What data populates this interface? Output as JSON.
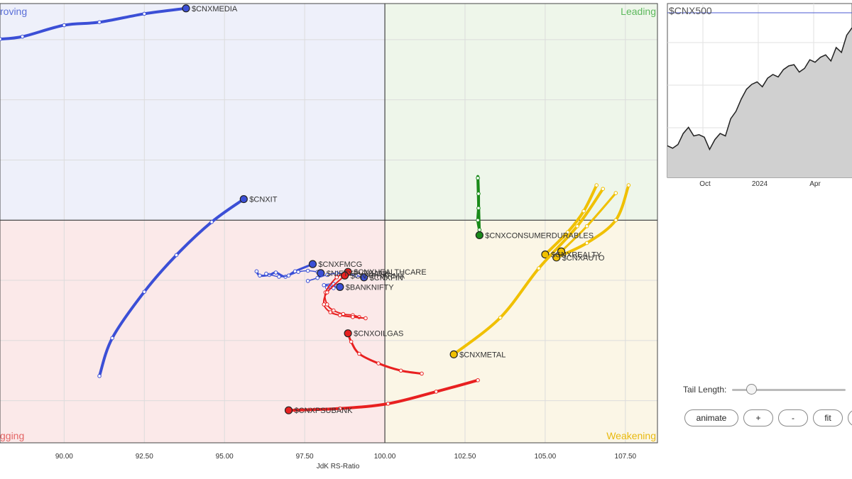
{
  "chart_data": {
    "type": "scatter",
    "subtype": "relative-rotation-graph",
    "xlabel": "JdK RS-Ratio",
    "ylabel": "",
    "xlim": [
      88.0,
      108.5
    ],
    "ylim": [
      96.3,
      103.6
    ],
    "center": [
      100,
      100
    ],
    "x_ticks": [
      90.0,
      92.5,
      95.0,
      97.5,
      100.0,
      102.5,
      105.0,
      107.5
    ],
    "x_tick_labels": [
      "90.00",
      "92.50",
      "95.00",
      "97.50",
      "100.00",
      "102.50",
      "105.00",
      "107.50"
    ],
    "grid": true,
    "quadrants": [
      {
        "name": "Improving",
        "label": "roving",
        "position": "top-left",
        "color": "#5a6fd8",
        "fill": "#eef0fa"
      },
      {
        "name": "Leading",
        "label": "Leading",
        "position": "top-right",
        "color": "#5cb85c",
        "fill": "#eef6ea"
      },
      {
        "name": "Lagging",
        "label": "gging",
        "position": "bottom-left",
        "color": "#e36464",
        "fill": "#fbe9e9"
      },
      {
        "name": "Weakening",
        "label": "Weakening",
        "position": "bottom-right",
        "color": "#e8b90f",
        "fill": "#fbf6e6"
      }
    ],
    "series": [
      {
        "name": "$CNXMEDIA",
        "color": "#3b4fd6",
        "lw": 4,
        "points": [
          [
            88.0,
            103.01
          ],
          [
            88.7,
            103.05
          ],
          [
            90.0,
            103.24
          ],
          [
            91.1,
            103.29
          ],
          [
            92.5,
            103.43
          ],
          [
            93.8,
            103.52
          ]
        ]
      },
      {
        "name": "$CNXIT",
        "color": "#3b4fd6",
        "lw": 4,
        "points": [
          [
            91.1,
            97.41
          ],
          [
            91.5,
            98.04
          ],
          [
            92.5,
            98.81
          ],
          [
            93.5,
            99.42
          ],
          [
            94.6,
            99.97
          ],
          [
            95.6,
            100.35
          ]
        ]
      },
      {
        "name": "$CNXFMCG",
        "color": "#3b4fd6",
        "lw": 3,
        "points": [
          [
            96.0,
            99.15
          ],
          [
            96.1,
            99.08
          ],
          [
            96.4,
            99.09
          ],
          [
            96.6,
            99.13
          ],
          [
            96.9,
            99.06
          ],
          [
            97.2,
            99.15
          ],
          [
            97.75,
            99.27
          ]
        ]
      },
      {
        "name": "$NIFTYPVTBANK",
        "color": "#3b4fd6",
        "lw": 1.5,
        "points": [
          [
            96.3,
            99.11
          ],
          [
            96.7,
            99.06
          ],
          [
            97.0,
            99.08
          ],
          [
            97.3,
            99.14
          ],
          [
            97.6,
            99.16
          ],
          [
            97.9,
            99.14
          ],
          [
            98.0,
            99.12
          ]
        ]
      },
      {
        "name": "$CNXFIN",
        "color": "#3b4fd6",
        "lw": 1.5,
        "points": [
          [
            97.6,
            98.99
          ],
          [
            97.9,
            99.04
          ],
          [
            98.2,
            99.09
          ],
          [
            98.5,
            99.12
          ],
          [
            98.8,
            99.11
          ],
          [
            99.1,
            99.08
          ],
          [
            99.35,
            99.05
          ]
        ]
      },
      {
        "name": "$BANKNIFTY",
        "color": "#3b4fd6",
        "lw": 1.5,
        "points": [
          [
            98.2,
            98.88
          ],
          [
            98.4,
            98.87
          ],
          [
            98.5,
            98.91
          ],
          [
            98.4,
            98.94
          ],
          [
            98.1,
            98.92
          ],
          [
            98.6,
            98.89
          ]
        ]
      },
      {
        "name": "$CNXCONSUMERDURABLES",
        "color": "#1a8a1a",
        "lw": 4,
        "points": [
          [
            102.95,
            99.84
          ],
          [
            102.9,
            100.0
          ],
          [
            102.92,
            100.2
          ],
          [
            102.92,
            100.44
          ],
          [
            102.9,
            100.7
          ],
          [
            102.95,
            99.75
          ]
        ]
      },
      {
        "name": "$CNXHEALTHCARE",
        "color": "#e82020",
        "lw": 2,
        "points": [
          [
            99.2,
            98.39
          ],
          [
            99.0,
            98.42
          ],
          [
            98.7,
            98.44
          ],
          [
            98.4,
            98.5
          ],
          [
            98.2,
            98.6
          ],
          [
            98.15,
            98.8
          ],
          [
            98.5,
            99.05
          ],
          [
            98.85,
            99.14
          ]
        ]
      },
      {
        "name": "$CNXPHARMA",
        "color": "#e82020",
        "lw": 2,
        "points": [
          [
            99.4,
            98.37
          ],
          [
            99.0,
            98.39
          ],
          [
            98.6,
            98.42
          ],
          [
            98.3,
            98.47
          ],
          [
            98.1,
            98.6
          ],
          [
            98.2,
            98.8
          ],
          [
            98.75,
            99.08
          ]
        ]
      },
      {
        "name": "$CNXOILGAS",
        "color": "#e82020",
        "lw": 3,
        "points": [
          [
            101.15,
            97.45
          ],
          [
            100.5,
            97.5
          ],
          [
            99.8,
            97.62
          ],
          [
            99.2,
            97.78
          ],
          [
            98.95,
            97.98
          ],
          [
            98.85,
            98.12
          ]
        ]
      },
      {
        "name": "$CNXPSUBANK",
        "color": "#e82020",
        "lw": 4,
        "points": [
          [
            102.9,
            97.34
          ],
          [
            101.6,
            97.15
          ],
          [
            100.1,
            96.95
          ],
          [
            98.6,
            96.87
          ],
          [
            97.0,
            96.84
          ]
        ]
      },
      {
        "name": "$CNXREALTY",
        "color": "#f0c000",
        "lw": 4,
        "points": [
          [
            106.6,
            100.58
          ],
          [
            106.2,
            100.15
          ],
          [
            105.7,
            99.8
          ],
          [
            105.0,
            99.43
          ]
        ]
      },
      {
        "name": "$CNXAUTO",
        "color": "#f0c000",
        "lw": 4,
        "points": [
          [
            107.6,
            100.58
          ],
          [
            107.2,
            100.0
          ],
          [
            106.3,
            99.62
          ],
          [
            105.35,
            99.38
          ]
        ]
      },
      {
        "name": "$CNXMETAL",
        "color": "#f0c000",
        "lw": 4,
        "points": [
          [
            106.8,
            100.52
          ],
          [
            106.0,
            99.9
          ],
          [
            104.8,
            99.2
          ],
          [
            103.6,
            98.38
          ],
          [
            102.15,
            97.77
          ]
        ]
      },
      {
        "name": "",
        "color": "#f0c000",
        "lw": 3,
        "points": [
          [
            107.2,
            100.45
          ],
          [
            106.3,
            99.9
          ],
          [
            105.5,
            99.48
          ]
        ]
      }
    ],
    "labels": [
      {
        "text": "$CNXMEDIA",
        "series": 0
      },
      {
        "text": "$CNXIT",
        "series": 1
      },
      {
        "text": "$CNXFMCG",
        "series": 2
      },
      {
        "text": "$NIFTYPVTBANK",
        "series": 3
      },
      {
        "text": "$CNXFIN",
        "series": 4
      },
      {
        "text": "$BANKNIFTY",
        "series": 5
      },
      {
        "text": "$CNXCONSUMERDURABLES",
        "series": 6
      },
      {
        "text": "$CNXHEALTHCARE",
        "series": 7
      },
      {
        "text": "$CNXPHARMA",
        "series": 8
      },
      {
        "text": "$CNXOILGAS",
        "series": 9
      },
      {
        "text": "$CNXPSUBANK",
        "series": 10
      },
      {
        "text": "$CNXREALTY",
        "series": 11
      },
      {
        "text": "$CNXAUTO",
        "series": 12
      },
      {
        "text": "$CNXMETAL",
        "series": 13
      }
    ]
  },
  "mini_chart": {
    "type": "area",
    "title": "$CNX500",
    "x_tick_labels": [
      "Oct",
      "2024",
      "Apr"
    ],
    "values": [
      20,
      18,
      21,
      30,
      35,
      28,
      29,
      27,
      17,
      25,
      30,
      28,
      42,
      48,
      58,
      66,
      70,
      72,
      68,
      75,
      78,
      76,
      82,
      85,
      86,
      80,
      83,
      90,
      88,
      92,
      94,
      89,
      100,
      96,
      110,
      116
    ],
    "fill": "#d0d0d0",
    "line": "#222222"
  },
  "controls": {
    "tail_length_label": "Tail Length:",
    "tail_length_value": 0.12,
    "animate_label": "animate",
    "plus_label": "+",
    "minus_label": "-",
    "fit_label": "fit"
  }
}
